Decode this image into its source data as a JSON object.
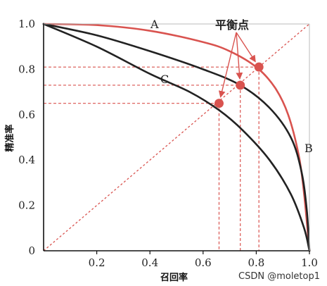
{
  "chart_data": {
    "type": "line",
    "xlabel": "召回率",
    "ylabel": "精准率",
    "xlim": [
      0,
      1
    ],
    "ylim": [
      0,
      1
    ],
    "x_ticks": [
      "0.2",
      "0.4",
      "0.6",
      "0.8",
      "1.0"
    ],
    "y_ticks": [
      "0",
      "0.2",
      "0.4",
      "0.6",
      "0.8",
      "1.0"
    ],
    "grid": false,
    "series": [
      {
        "name": "A",
        "color": "#d9534f",
        "x": [
          0,
          0.2,
          0.4,
          0.6,
          0.7,
          0.8,
          0.87,
          0.92,
          0.96,
          0.98,
          1.0
        ],
        "y": [
          1.0,
          0.995,
          0.97,
          0.92,
          0.88,
          0.81,
          0.72,
          0.6,
          0.42,
          0.25,
          0
        ]
      },
      {
        "name": "B",
        "color": "#222222",
        "x": [
          0,
          0.2,
          0.4,
          0.6,
          0.74,
          0.85,
          0.93,
          0.97,
          0.99,
          1.0
        ],
        "y": [
          1.0,
          0.95,
          0.88,
          0.8,
          0.73,
          0.63,
          0.5,
          0.35,
          0.18,
          0
        ]
      },
      {
        "name": "C",
        "color": "#222222",
        "x": [
          0,
          0.2,
          0.4,
          0.55,
          0.66,
          0.75,
          0.85,
          0.93,
          0.98,
          1.0
        ],
        "y": [
          1.0,
          0.9,
          0.78,
          0.7,
          0.62,
          0.53,
          0.4,
          0.25,
          0.1,
          0
        ]
      }
    ],
    "diagonal": {
      "from": [
        0,
        0
      ],
      "to": [
        1,
        1
      ],
      "color": "#d9534f"
    },
    "balance_points": [
      {
        "curve": "A",
        "x": 0.81,
        "y": 0.81
      },
      {
        "curve": "B",
        "x": 0.74,
        "y": 0.73
      },
      {
        "curve": "C",
        "x": 0.66,
        "y": 0.65
      }
    ],
    "annotation": "平衡点",
    "accent_color": "#d9534f"
  },
  "watermark": "CSDN @moletop1"
}
